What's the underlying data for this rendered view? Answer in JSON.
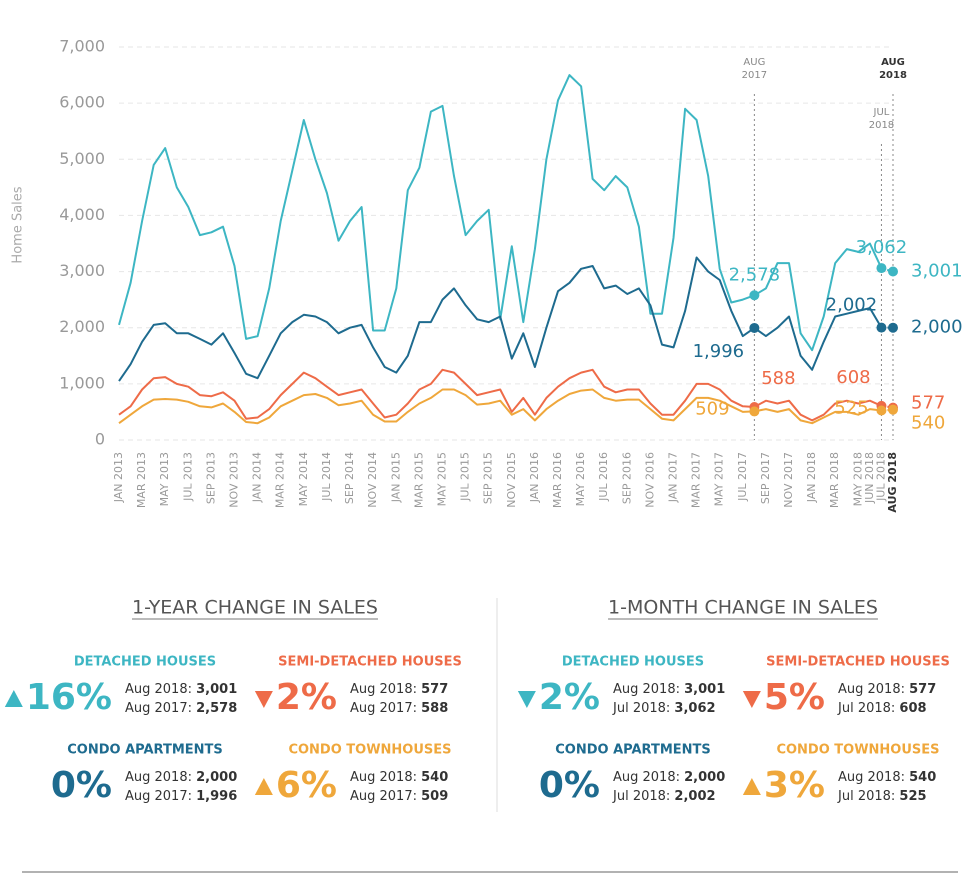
{
  "chart_data": {
    "type": "line",
    "y_label": "Home Sales",
    "categories": [
      "JAN 2013",
      null,
      "MAR 2013",
      null,
      "MAY 2013",
      null,
      "JUL 2013",
      null,
      "SEP 2013",
      null,
      "NOV 2013",
      null,
      "JAN 2014",
      null,
      "MAR 2014",
      null,
      "MAY 2014",
      null,
      "JUL 2014",
      null,
      "SEP 2014",
      null,
      "NOV 2014",
      null,
      "JAN 2015",
      null,
      "MAR 2015",
      null,
      "MAY 2015",
      null,
      "JUL 2015",
      null,
      "SEP 2015",
      null,
      "NOV 2015",
      null,
      "JAN 2016",
      null,
      "MAR 2016",
      null,
      "MAY 2016",
      null,
      "JUL 2016",
      null,
      "SEP 2016",
      null,
      "NOV 2016",
      null,
      "JAN 2017",
      null,
      "MAR 2017",
      null,
      "MAY 2017",
      null,
      "JUL 2017",
      null,
      "SEP 2017",
      null,
      "NOV 2017",
      null,
      "JAN 2018",
      null,
      "MAR 2018",
      null,
      "MAY 2018",
      "JUN 2018",
      "JUL 2018",
      "AUG 2018"
    ],
    "ylim": [
      0,
      7000
    ],
    "yticks": [
      0,
      {
        "value": 1000,
        "label": "1,000"
      },
      {
        "value": 2000,
        "label": "2,000"
      },
      {
        "value": 3000,
        "label": "3,000"
      },
      {
        "value": 4000,
        "label": "4,000"
      },
      {
        "value": 5000,
        "label": "5,000"
      },
      {
        "value": 6000,
        "label": "6,000"
      },
      {
        "value": 7000,
        "label": "7,000"
      }
    ],
    "vlines": [
      {
        "at": 55,
        "text": [
          "AUG",
          "2017"
        ]
      },
      {
        "at": 66,
        "text": [
          "JUL",
          "2018"
        ]
      },
      {
        "at": 67,
        "text": [
          "AUG",
          "2018"
        ]
      }
    ],
    "series": [
      {
        "name": "Detached Houses",
        "color": "#3db6c3",
        "values": [
          2050,
          2800,
          3900,
          4900,
          5200,
          4500,
          4150,
          3650,
          3700,
          3800,
          3100,
          1800,
          1850,
          2700,
          3900,
          4800,
          5700,
          5000,
          4400,
          3550,
          3900,
          4150,
          1950,
          1950,
          2700,
          4450,
          4850,
          5850,
          5950,
          4700,
          3650,
          3900,
          4100,
          2150,
          3450,
          2100,
          3400,
          5000,
          6050,
          6500,
          6300,
          4650,
          4450,
          4700,
          4500,
          3800,
          2250,
          2250,
          3600,
          5900,
          5700,
          4700,
          3050,
          2450,
          2500,
          2578,
          2700,
          3150,
          3150,
          1900,
          1600,
          2200,
          3150,
          3400,
          3350,
          3500,
          3062,
          3001
        ],
        "labels": [
          {
            "at": 55,
            "text": "2,578"
          },
          {
            "at": 66,
            "text": "3,062"
          },
          {
            "at": 67,
            "text": "3,001"
          }
        ]
      },
      {
        "name": "Condo Apartments",
        "color": "#1e6b8f",
        "values": [
          1050,
          1350,
          1750,
          2050,
          2080,
          1900,
          1900,
          1800,
          1700,
          1900,
          1550,
          1180,
          1100,
          1500,
          1900,
          2100,
          2230,
          2200,
          2100,
          1900,
          2000,
          2050,
          1650,
          1300,
          1200,
          1500,
          2100,
          2100,
          2500,
          2700,
          2400,
          2150,
          2100,
          2200,
          1450,
          1900,
          1300,
          2000,
          2650,
          2800,
          3050,
          3100,
          2700,
          2750,
          2600,
          2700,
          2400,
          1700,
          1650,
          2300,
          3250,
          3000,
          2850,
          2300,
          1850,
          1996,
          1850,
          2000,
          2200,
          1500,
          1250,
          1750,
          2200,
          2250,
          2300,
          2350,
          2002,
          2000
        ],
        "labels": [
          {
            "at": 55,
            "text": "1,996"
          },
          {
            "at": 66,
            "text": "2,002"
          },
          {
            "at": 67,
            "text": "2,000"
          }
        ]
      },
      {
        "name": "Semi-Detached Houses",
        "color": "#ee6b48",
        "values": [
          450,
          600,
          900,
          1100,
          1120,
          1000,
          950,
          800,
          780,
          850,
          700,
          380,
          400,
          550,
          800,
          1000,
          1200,
          1100,
          950,
          800,
          850,
          900,
          650,
          400,
          450,
          650,
          900,
          1000,
          1250,
          1200,
          1000,
          800,
          850,
          900,
          500,
          750,
          450,
          750,
          950,
          1100,
          1200,
          1250,
          950,
          850,
          900,
          900,
          650,
          450,
          450,
          700,
          1000,
          1000,
          900,
          700,
          600,
          588,
          700,
          650,
          700,
          450,
          350,
          450,
          650,
          700,
          650,
          700,
          608,
          577
        ],
        "labels": [
          {
            "at": 55,
            "text": "588"
          },
          {
            "at": 66,
            "text": "608"
          },
          {
            "at": 67,
            "text": "577"
          }
        ]
      },
      {
        "name": "Condo Townhouses",
        "color": "#efa73b",
        "values": [
          300,
          450,
          600,
          720,
          730,
          720,
          680,
          600,
          580,
          650,
          500,
          320,
          300,
          400,
          600,
          700,
          800,
          820,
          750,
          620,
          650,
          700,
          450,
          330,
          330,
          500,
          650,
          750,
          900,
          900,
          800,
          630,
          650,
          700,
          450,
          550,
          350,
          550,
          700,
          820,
          880,
          900,
          750,
          700,
          720,
          720,
          550,
          380,
          350,
          550,
          750,
          750,
          700,
          600,
          500,
          509,
          550,
          500,
          550,
          350,
          300,
          400,
          500,
          500,
          450,
          550,
          525,
          540
        ],
        "labels": [
          {
            "at": 55,
            "text": "509"
          },
          {
            "at": 66,
            "text": "525"
          },
          {
            "at": 67,
            "text": "540"
          }
        ]
      }
    ]
  },
  "panels": [
    {
      "title": "1-YEAR CHANGE IN SALES",
      "items": [
        {
          "name": "DETACHED HOUSES",
          "color": "#3db6c3",
          "direction": "up",
          "change": "16%",
          "lines": [
            {
              "label": "Aug 2018:",
              "value": "3,001"
            },
            {
              "label": "Aug 2017:",
              "value": "2,578"
            }
          ]
        },
        {
          "name": "SEMI-DETACHED HOUSES",
          "color": "#ee6b48",
          "direction": "down",
          "change": "2%",
          "lines": [
            {
              "label": "Aug 2018:",
              "value": "577"
            },
            {
              "label": "Aug 2017:",
              "value": "588"
            }
          ]
        },
        {
          "name": "CONDO APARTMENTS",
          "color": "#1e6b8f",
          "direction": "none",
          "change": "0%",
          "lines": [
            {
              "label": "Aug 2018:",
              "value": "2,000"
            },
            {
              "label": "Aug 2017:",
              "value": "1,996"
            }
          ]
        },
        {
          "name": "CONDO TOWNHOUSES",
          "color": "#efa73b",
          "direction": "up",
          "change": "6%",
          "lines": [
            {
              "label": "Aug 2018:",
              "value": "540"
            },
            {
              "label": "Aug 2017:",
              "value": "509"
            }
          ]
        }
      ]
    },
    {
      "title": "1-MONTH CHANGE IN SALES",
      "items": [
        {
          "name": "DETACHED HOUSES",
          "color": "#3db6c3",
          "direction": "down",
          "change": "2%",
          "lines": [
            {
              "label": "Aug 2018:",
              "value": "3,001"
            },
            {
              "label": "Jul 2018:",
              "value": "3,062"
            }
          ]
        },
        {
          "name": "SEMI-DETACHED HOUSES",
          "color": "#ee6b48",
          "direction": "down",
          "change": "5%",
          "lines": [
            {
              "label": "Aug 2018:",
              "value": "577"
            },
            {
              "label": "Jul 2018:",
              "value": "608"
            }
          ]
        },
        {
          "name": "CONDO APARTMENTS",
          "color": "#1e6b8f",
          "direction": "none",
          "change": "0%",
          "lines": [
            {
              "label": "Aug 2018:",
              "value": "2,000"
            },
            {
              "label": "Jul 2018:",
              "value": "2,002"
            }
          ]
        },
        {
          "name": "CONDO TOWNHOUSES",
          "color": "#efa73b",
          "direction": "up",
          "change": "3%",
          "lines": [
            {
              "label": "Aug 2018:",
              "value": "540"
            },
            {
              "label": "Jul 2018:",
              "value": "525"
            }
          ]
        }
      ]
    }
  ]
}
